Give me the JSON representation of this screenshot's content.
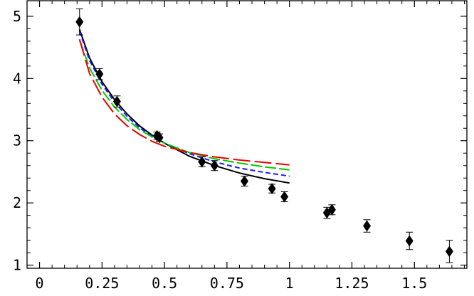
{
  "chart_data": {
    "type": "scatter",
    "title": "",
    "xlabel": "",
    "ylabel": "",
    "xlim": [
      -0.05,
      1.71
    ],
    "ylim": [
      0.95,
      5.25
    ],
    "x_ticks": [
      {
        "value": 0,
        "label": "0"
      },
      {
        "value": 0.25,
        "label": "0.25"
      },
      {
        "value": 0.5,
        "label": "0.5"
      },
      {
        "value": 0.75,
        "label": "0.75"
      },
      {
        "value": 1,
        "label": "1"
      },
      {
        "value": 1.25,
        "label": "1.25"
      },
      {
        "value": 1.5,
        "label": "1.5"
      }
    ],
    "y_ticks": [
      {
        "value": 1,
        "label": "1"
      },
      {
        "value": 2,
        "label": "2"
      },
      {
        "value": 3,
        "label": "3"
      },
      {
        "value": 4,
        "label": "4"
      },
      {
        "value": 5,
        "label": "5"
      }
    ],
    "grid": false,
    "points": [
      {
        "x": 0.16,
        "y": 4.91,
        "err": 0.21
      },
      {
        "x": 0.24,
        "y": 4.07,
        "err": 0.09
      },
      {
        "x": 0.31,
        "y": 3.63,
        "err": 0.09
      },
      {
        "x": 0.47,
        "y": 3.08,
        "err": 0.06
      },
      {
        "x": 0.48,
        "y": 3.05,
        "err": 0.06
      },
      {
        "x": 0.65,
        "y": 2.66,
        "err": 0.08
      },
      {
        "x": 0.7,
        "y": 2.6,
        "err": 0.08
      },
      {
        "x": 0.82,
        "y": 2.35,
        "err": 0.08
      },
      {
        "x": 0.93,
        "y": 2.23,
        "err": 0.07
      },
      {
        "x": 0.98,
        "y": 2.1,
        "err": 0.08
      },
      {
        "x": 1.15,
        "y": 1.84,
        "err": 0.09
      },
      {
        "x": 1.17,
        "y": 1.89,
        "err": 0.08
      },
      {
        "x": 1.31,
        "y": 1.63,
        "err": 0.1
      },
      {
        "x": 1.48,
        "y": 1.39,
        "err": 0.14
      },
      {
        "x": 1.64,
        "y": 1.22,
        "err": 0.18
      }
    ],
    "series": [
      {
        "color": "#000000",
        "dash": "solid",
        "x": [
          0.16,
          0.2,
          0.25,
          0.3,
          0.35,
          0.4,
          0.45,
          0.5,
          0.6,
          0.7,
          0.8,
          0.9,
          1.0
        ],
        "y": [
          4.79,
          4.33,
          3.95,
          3.66,
          3.43,
          3.24,
          3.09,
          2.96,
          2.75,
          2.6,
          2.48,
          2.39,
          2.32
        ]
      },
      {
        "color": "#1a1aff",
        "dash": "short-dash",
        "x": [
          0.16,
          0.2,
          0.25,
          0.3,
          0.35,
          0.4,
          0.45,
          0.5,
          0.6,
          0.7,
          0.8,
          0.9,
          1.0
        ],
        "y": [
          4.76,
          4.29,
          3.91,
          3.62,
          3.39,
          3.21,
          3.07,
          2.96,
          2.79,
          2.66,
          2.56,
          2.49,
          2.43
        ]
      },
      {
        "color": "#00cc00",
        "dash": "long-dash",
        "x": [
          0.16,
          0.2,
          0.25,
          0.3,
          0.35,
          0.4,
          0.45,
          0.5,
          0.6,
          0.7,
          0.8,
          0.9,
          1.0
        ],
        "y": [
          4.62,
          4.17,
          3.81,
          3.54,
          3.34,
          3.18,
          3.06,
          2.96,
          2.81,
          2.71,
          2.64,
          2.58,
          2.53
        ]
      },
      {
        "color": "#ee0000",
        "dash": "long-long-dash",
        "x": [
          0.16,
          0.2,
          0.25,
          0.3,
          0.35,
          0.4,
          0.45,
          0.5,
          0.6,
          0.7,
          0.8,
          0.9,
          1.0
        ],
        "y": [
          4.63,
          4.08,
          3.7,
          3.43,
          3.24,
          3.1,
          2.99,
          2.91,
          2.81,
          2.74,
          2.69,
          2.65,
          2.61
        ]
      }
    ]
  }
}
